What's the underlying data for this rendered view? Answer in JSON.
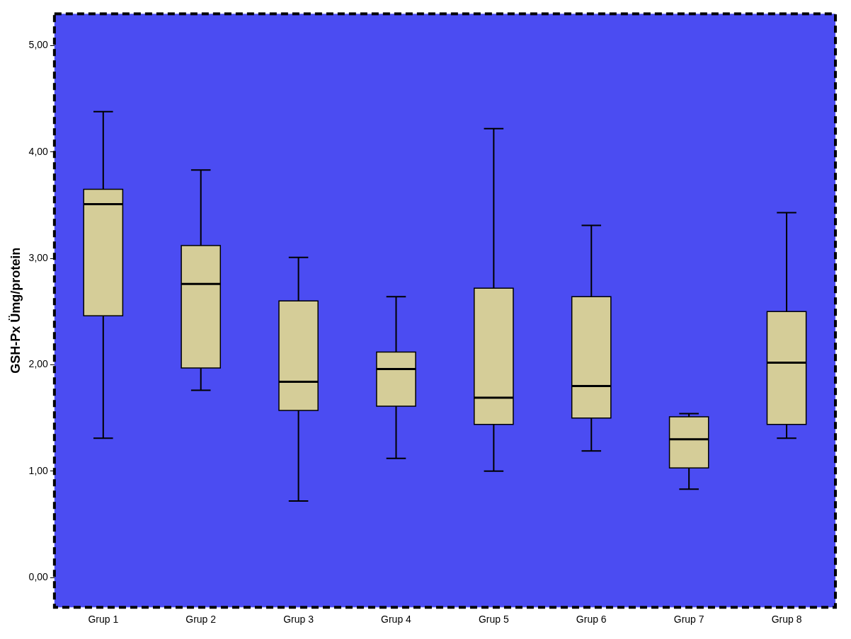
{
  "chart_data": {
    "type": "box",
    "ylabel": "GSH-Px Ümg/protein",
    "categories": [
      "Grup 1",
      "Grup 2",
      "Grup 3",
      "Grup 4",
      "Grup 5",
      "Grup 6",
      "Grup 7",
      "Grup 8"
    ],
    "color": "#d5cd98",
    "boxes": [
      {
        "low": 1.31,
        "q1": 2.46,
        "median": 3.51,
        "q3": 3.65,
        "high": 4.38
      },
      {
        "low": 1.76,
        "q1": 1.97,
        "median": 2.76,
        "q3": 3.12,
        "high": 3.83
      },
      {
        "low": 0.72,
        "q1": 1.57,
        "median": 1.84,
        "q3": 2.6,
        "high": 3.01
      },
      {
        "low": 1.12,
        "q1": 1.61,
        "median": 1.96,
        "q3": 2.12,
        "high": 2.64
      },
      {
        "low": 1.0,
        "q1": 1.44,
        "median": 1.69,
        "q3": 2.72,
        "high": 4.22
      },
      {
        "low": 1.19,
        "q1": 1.5,
        "median": 1.8,
        "q3": 2.64,
        "high": 3.31
      },
      {
        "low": 0.83,
        "q1": 1.03,
        "median": 1.3,
        "q3": 1.51,
        "high": 1.54
      },
      {
        "low": 1.31,
        "q1": 1.44,
        "median": 2.02,
        "q3": 2.5,
        "high": 3.43
      }
    ],
    "ylim": [
      -0.28,
      5.3
    ],
    "yticks": [
      {
        "value": 0,
        "label": "0,00"
      },
      {
        "value": 1,
        "label": "1,00"
      },
      {
        "value": 2,
        "label": "2,00"
      },
      {
        "value": 3,
        "label": "3,00"
      },
      {
        "value": 4,
        "label": "4,00"
      },
      {
        "value": 5,
        "label": "5,00"
      }
    ],
    "grid": false,
    "legend": false
  }
}
